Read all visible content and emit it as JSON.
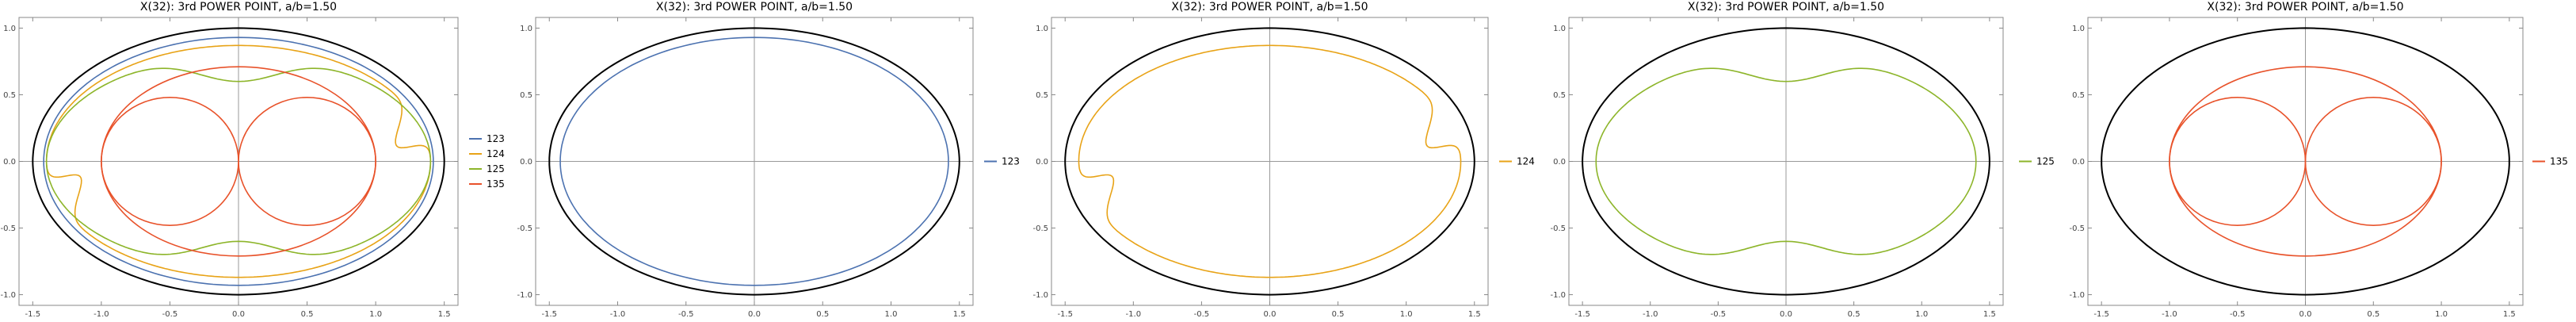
{
  "chart_data": [
    {
      "type": "line",
      "title": "X(32): 3rd POWER POINT, a/b=1.50",
      "xlim": [
        -1.6,
        1.6
      ],
      "ylim": [
        -1.08,
        1.08
      ],
      "xticks": [
        "-1.5",
        "-1.0",
        "-0.5",
        "0.0",
        "0.5",
        "1.0",
        "1.5"
      ],
      "yticks": [
        "-1.0",
        "-0.5",
        "0.0",
        "0.5",
        "1.0"
      ],
      "legend_position": "right",
      "series": [
        {
          "name": "123",
          "color": "#4c72b0"
        },
        {
          "name": "124",
          "color": "#e8a317"
        },
        {
          "name": "125",
          "color": "#8db52a"
        },
        {
          "name": "135",
          "color": "#e8522a"
        }
      ],
      "ellipse": {
        "a": 1.5,
        "b": 1.0,
        "color": "#000000"
      }
    },
    {
      "type": "line",
      "title": "X(32): 3rd POWER POINT, a/b=1.50",
      "xlim": [
        -1.6,
        1.6
      ],
      "ylim": [
        -1.08,
        1.08
      ],
      "xticks": [
        "-1.5",
        "-1.0",
        "-0.5",
        "0.0",
        "0.5",
        "1.0",
        "1.5"
      ],
      "yticks": [
        "-1.0",
        "-0.5",
        "0.0",
        "0.5",
        "1.0"
      ],
      "legend_position": "right",
      "series": [
        {
          "name": "123",
          "color": "#4c72b0"
        }
      ],
      "ellipse": {
        "a": 1.5,
        "b": 1.0,
        "color": "#000000"
      }
    },
    {
      "type": "line",
      "title": "X(32): 3rd POWER POINT, a/b=1.50",
      "xlim": [
        -1.6,
        1.6
      ],
      "ylim": [
        -1.08,
        1.08
      ],
      "xticks": [
        "-1.5",
        "-1.0",
        "-0.5",
        "0.0",
        "0.5",
        "1.0",
        "1.5"
      ],
      "yticks": [
        "-1.0",
        "-0.5",
        "0.0",
        "0.5",
        "1.0"
      ],
      "legend_position": "right",
      "series": [
        {
          "name": "124",
          "color": "#e8a317"
        }
      ],
      "ellipse": {
        "a": 1.5,
        "b": 1.0,
        "color": "#000000"
      }
    },
    {
      "type": "line",
      "title": "X(32): 3rd POWER POINT, a/b=1.50",
      "xlim": [
        -1.6,
        1.6
      ],
      "ylim": [
        -1.08,
        1.08
      ],
      "xticks": [
        "-1.5",
        "-1.0",
        "-0.5",
        "0.0",
        "0.5",
        "1.0",
        "1.5"
      ],
      "yticks": [
        "-1.0",
        "-0.5",
        "0.0",
        "0.5",
        "1.0"
      ],
      "legend_position": "right",
      "series": [
        {
          "name": "125",
          "color": "#8db52a"
        }
      ],
      "ellipse": {
        "a": 1.5,
        "b": 1.0,
        "color": "#000000"
      }
    },
    {
      "type": "line",
      "title": "X(32): 3rd POWER POINT, a/b=1.50",
      "xlim": [
        -1.6,
        1.6
      ],
      "ylim": [
        -1.08,
        1.08
      ],
      "xticks": [
        "-1.5",
        "-1.0",
        "-0.5",
        "0.0",
        "0.5",
        "1.0",
        "1.5"
      ],
      "yticks": [
        "-1.0",
        "-0.5",
        "0.0",
        "0.5",
        "1.0"
      ],
      "legend_position": "right",
      "series": [
        {
          "name": "135",
          "color": "#e8522a"
        }
      ],
      "ellipse": {
        "a": 1.5,
        "b": 1.0,
        "color": "#000000"
      }
    }
  ]
}
